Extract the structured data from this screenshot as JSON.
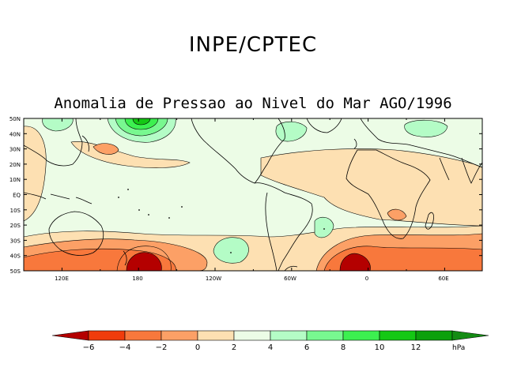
{
  "header": {
    "organization": "INPE/CPTEC",
    "title": "Anomalia de Pressao ao Nivel do Mar AGO/1996"
  },
  "map": {
    "lat_labels": [
      "50N",
      "40N",
      "30N",
      "20N",
      "10N",
      "EQ",
      "10S",
      "20S",
      "30S",
      "40S",
      "50S"
    ],
    "lon_labels": [
      "120E",
      "180",
      "120W",
      "60W",
      "0",
      "60E"
    ]
  },
  "legend": {
    "tick_labels": [
      "−6",
      "−4",
      "−2",
      "0",
      "2",
      "4",
      "6",
      "8",
      "10",
      "12"
    ],
    "unit": "hPa",
    "colors": [
      "#b40000",
      "#f03c0c",
      "#f8783c",
      "#fca066",
      "#fde0b2",
      "#ecfce6",
      "#b4fcc6",
      "#78f890",
      "#3cf050",
      "#14c814",
      "#0ca00c",
      "#148c14"
    ]
  }
}
